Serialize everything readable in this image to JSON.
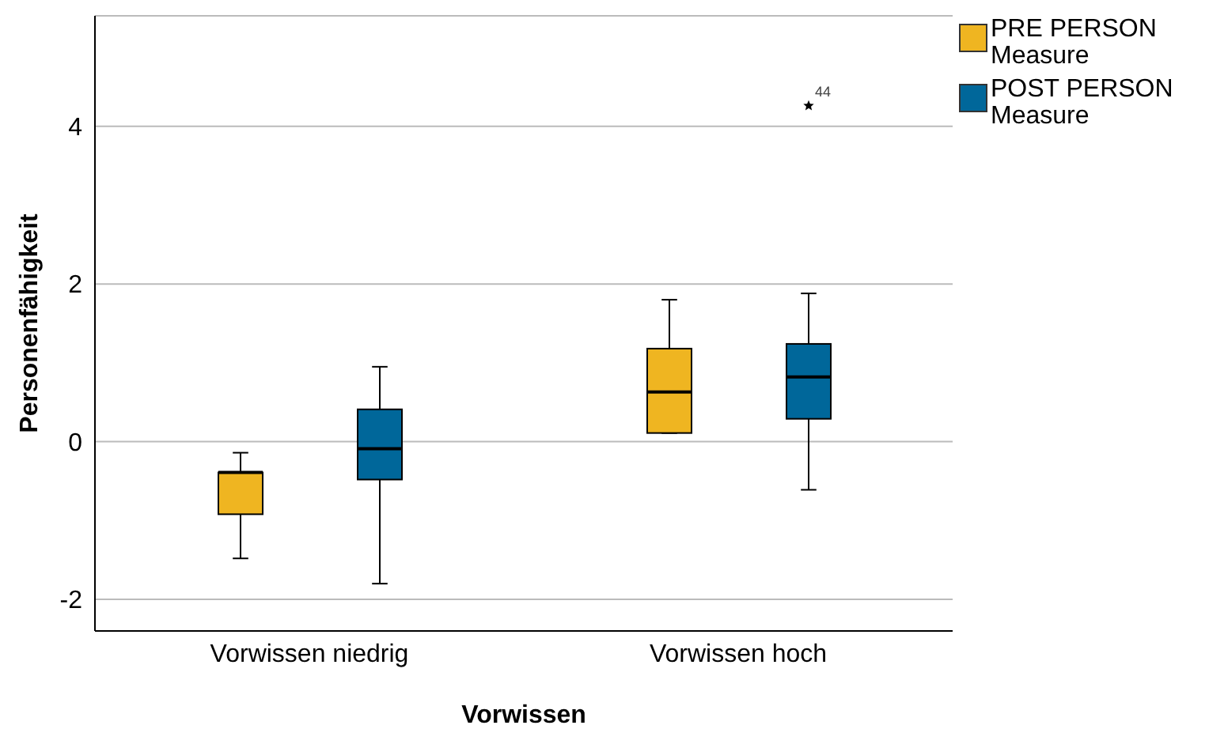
{
  "chart_data": {
    "type": "box",
    "xlabel": "Vorwissen",
    "ylabel": "Personenfähigkeit",
    "categories": [
      "Vorwissen niedrig",
      "Vorwissen hoch"
    ],
    "series": [
      {
        "name": "PRE PERSON Measure",
        "color": "#efb521",
        "boxes": [
          {
            "low": -1.48,
            "q1": -0.92,
            "median": -0.39,
            "q3": -0.39,
            "high": -0.14
          },
          {
            "low": 0.11,
            "q1": 0.11,
            "median": 0.63,
            "q3": 1.18,
            "high": 1.8
          }
        ]
      },
      {
        "name": "POST PERSON Measure",
        "color": "#00679a",
        "boxes": [
          {
            "low": -1.8,
            "q1": -0.48,
            "median": -0.09,
            "q3": 0.41,
            "high": 0.95
          },
          {
            "low": -0.61,
            "q1": 0.29,
            "median": 0.82,
            "q3": 1.24,
            "high": 1.88,
            "outliers": [
              4.26
            ]
          }
        ]
      }
    ],
    "annotations": [
      "44"
    ],
    "ylim": [
      -2.4,
      5.4
    ],
    "yticks": [
      -2,
      0,
      2,
      4
    ],
    "grid": "y",
    "legend": "top right"
  }
}
